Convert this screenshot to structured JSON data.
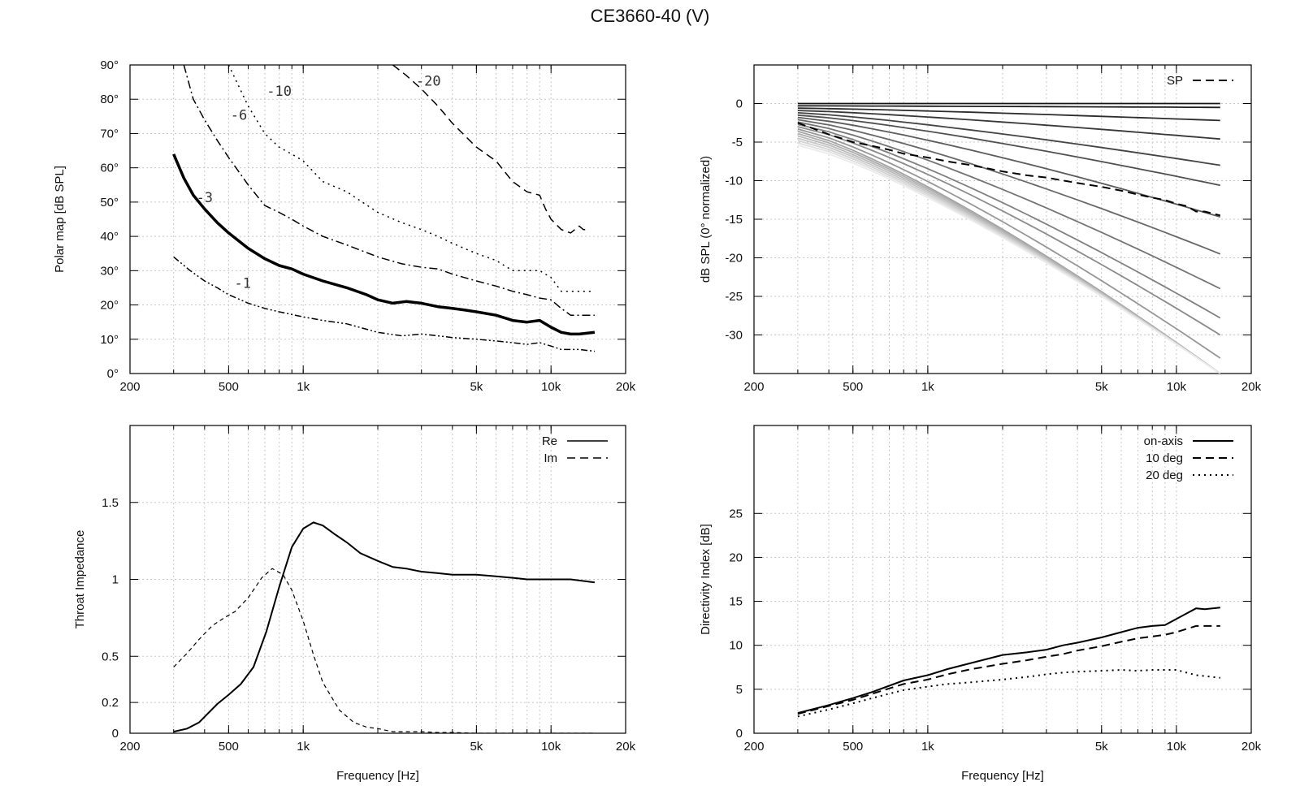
{
  "figure": {
    "title": "CE3660-40 (V)"
  },
  "chart_data": [
    {
      "id": "polar",
      "type": "line",
      "title": "",
      "xlabel": "",
      "ylabel": "Polar map [dB SPL]",
      "xscale": "log",
      "xlim": [
        200,
        20000
      ],
      "ylim": [
        0,
        90
      ],
      "xticks": [
        200,
        500,
        1000,
        5000,
        10000,
        20000
      ],
      "xticklabels": [
        "200",
        "500",
        "1k",
        "5k",
        "10k",
        "20k"
      ],
      "yticks": [
        0,
        10,
        20,
        30,
        40,
        50,
        60,
        70,
        80,
        90
      ],
      "yticklabels": [
        "0°",
        "10°",
        "20°",
        "30°",
        "40°",
        "50°",
        "60°",
        "70°",
        "80°",
        "90°"
      ],
      "grid": true,
      "series": [
        {
          "name": "-1",
          "label": "-1",
          "style": "dashdotdot",
          "width": 1.5,
          "x": [
            300,
            350,
            400,
            450,
            500,
            600,
            700,
            800,
            1000,
            1200,
            1500,
            2000,
            2500,
            3000,
            3500,
            4000,
            5000,
            6000,
            7000,
            8000,
            9000,
            10000,
            11000,
            12000,
            13000,
            15000
          ],
          "y": [
            34,
            30,
            27,
            25,
            23,
            20.5,
            19,
            18,
            16.5,
            15.5,
            14.5,
            12,
            11,
            11.5,
            11,
            10.5,
            10,
            9.5,
            9,
            8.5,
            9,
            8,
            7,
            7,
            7,
            6.5
          ],
          "labelAt": [
            570,
            25
          ]
        },
        {
          "name": "-3",
          "label": "-3",
          "style": "solid",
          "width": 3.5,
          "x": [
            300,
            330,
            360,
            400,
            450,
            500,
            600,
            700,
            800,
            900,
            1000,
            1200,
            1500,
            1800,
            2000,
            2300,
            2600,
            3000,
            3500,
            4000,
            4500,
            5000,
            6000,
            7000,
            8000,
            9000,
            10000,
            11000,
            12000,
            13000,
            15000
          ],
          "y": [
            64,
            57,
            52,
            48,
            44,
            41,
            36.5,
            33.5,
            31.5,
            30.5,
            29,
            27,
            25,
            23,
            21.5,
            20.5,
            21,
            20.5,
            19.5,
            19,
            18.5,
            18,
            17,
            15.5,
            15,
            15.5,
            13.5,
            12,
            11.5,
            11.5,
            12
          ],
          "labelAt": [
            400,
            50
          ]
        },
        {
          "name": "-6",
          "label": "-6",
          "style": "dashdot",
          "width": 1.5,
          "x": [
            330,
            360,
            400,
            450,
            500,
            600,
            700,
            800,
            900,
            1000,
            1200,
            1500,
            2000,
            2500,
            3000,
            3500,
            4000,
            5000,
            6000,
            7000,
            8000,
            9000,
            10000,
            11000,
            12000,
            13000,
            15000
          ],
          "y": [
            90,
            80,
            74,
            68,
            63,
            55,
            49,
            47,
            45,
            43,
            40,
            37.5,
            34,
            32,
            31,
            30.5,
            29,
            27,
            25.5,
            24,
            23,
            22,
            21.5,
            19,
            17,
            17,
            17
          ],
          "labelAt": [
            550,
            74
          ]
        },
        {
          "name": "-10",
          "label": "-10",
          "style": "dotted",
          "width": 1.5,
          "x": [
            500,
            600,
            700,
            800,
            900,
            1000,
            1200,
            1500,
            2000,
            2500,
            3000,
            3500,
            4000,
            5000,
            6000,
            7000,
            8000,
            9000,
            10000,
            11000,
            12000,
            13000,
            15000
          ],
          "y": [
            90,
            78,
            70,
            66,
            64,
            62,
            56,
            53,
            47,
            44,
            42,
            40,
            38,
            35,
            33,
            30,
            30,
            30,
            28,
            24,
            24,
            24,
            24
          ],
          "labelAt": [
            800,
            81
          ]
        },
        {
          "name": "-20",
          "label": "-20",
          "style": "dashed",
          "width": 1.5,
          "x": [
            2300,
            2600,
            3000,
            3500,
            4000,
            5000,
            6000,
            7000,
            8000,
            9000,
            9500,
            10000,
            11000,
            12000,
            13000,
            13500,
            14000
          ],
          "y": [
            90,
            87,
            83,
            78,
            73,
            66,
            62,
            56,
            53,
            52,
            48,
            45,
            42,
            41,
            43,
            42,
            42
          ],
          "labelAt": [
            3200,
            84
          ]
        }
      ]
    },
    {
      "id": "spl",
      "type": "line",
      "title": "",
      "xlabel": "",
      "ylabel": "dB SPL (0° normalized)",
      "xscale": "log",
      "xlim": [
        200,
        20000
      ],
      "ylim": [
        -35,
        5
      ],
      "xticks": [
        200,
        500,
        1000,
        5000,
        10000,
        20000
      ],
      "xticklabels": [
        "200",
        "500",
        "1k",
        "5k",
        "10k",
        "20k"
      ],
      "yticks": [
        0,
        -5,
        -10,
        -15,
        -20,
        -25,
        -30
      ],
      "yticklabels": [
        "0",
        "-5",
        "-10",
        "-15",
        "-20",
        "-25",
        "-30"
      ],
      "grid": true,
      "legend": [
        {
          "label": "SP",
          "style": "dashed"
        }
      ],
      "x": [
        300,
        400,
        500,
        600,
        700,
        800,
        1000,
        1200,
        1500,
        2000,
        2500,
        3000,
        4000,
        5000,
        6000,
        7000,
        8000,
        9000,
        10000,
        11000,
        12000,
        13000,
        15000
      ],
      "curves_at_angle_deg": [
        0,
        5,
        10,
        15,
        20,
        25,
        30,
        35,
        40,
        45,
        50,
        55,
        60,
        65,
        70,
        75,
        80,
        85,
        90
      ],
      "curve_final_levels_db": [
        0,
        -0.5,
        -2.2,
        -4.6,
        -8,
        -10.6,
        -14.7,
        -19.5,
        -24,
        -27.8,
        -30,
        -33,
        -35,
        -35,
        -35,
        -35,
        -35,
        -35,
        -35
      ],
      "sound_power": {
        "name": "SP",
        "y": [
          -2.5,
          -4,
          -5,
          -5.5,
          -6,
          -6.5,
          -7,
          -7.5,
          -8,
          -8.8,
          -9.3,
          -9.6,
          -10.3,
          -10.8,
          -11.3,
          -11.8,
          -12.2,
          -12.5,
          -13,
          -13.3,
          -14,
          -14,
          -14.5
        ]
      }
    },
    {
      "id": "impedance",
      "type": "line",
      "title": "",
      "xlabel": "Frequency [Hz]",
      "ylabel": "Throat Impedance",
      "xscale": "log",
      "xlim": [
        200,
        20000
      ],
      "ylim": [
        0,
        2
      ],
      "xticks": [
        200,
        500,
        1000,
        5000,
        10000,
        20000
      ],
      "xticklabels": [
        "200",
        "500",
        "1k",
        "5k",
        "10k",
        "20k"
      ],
      "yticks": [
        0,
        0.2,
        0.5,
        1,
        1.5
      ],
      "yticklabels": [
        "0",
        "0.2",
        "0.5",
        "1",
        "1.5"
      ],
      "grid": true,
      "series": [
        {
          "name": "Re",
          "style": "solid",
          "x": [
            300,
            340,
            380,
            450,
            500,
            560,
            630,
            710,
            800,
            900,
            1000,
            1100,
            1200,
            1350,
            1500,
            1700,
            2000,
            2300,
            2600,
            3000,
            3500,
            4000,
            5000,
            6000,
            7000,
            8000,
            9000,
            10000,
            12000,
            15000
          ],
          "y": [
            0.01,
            0.03,
            0.07,
            0.19,
            0.25,
            0.32,
            0.43,
            0.66,
            0.95,
            1.21,
            1.33,
            1.37,
            1.35,
            1.29,
            1.24,
            1.17,
            1.12,
            1.08,
            1.07,
            1.05,
            1.04,
            1.03,
            1.03,
            1.02,
            1.01,
            1,
            1,
            1,
            1,
            0.98
          ]
        },
        {
          "name": "Im",
          "style": "dashed",
          "x": [
            300,
            340,
            380,
            430,
            480,
            530,
            600,
            680,
            750,
            830,
            900,
            1000,
            1100,
            1200,
            1400,
            1600,
            1800,
            2000,
            2300,
            2600,
            3000,
            3500,
            4000,
            5000,
            6000,
            8000,
            10000,
            15000
          ],
          "y": [
            0.43,
            0.52,
            0.61,
            0.7,
            0.75,
            0.79,
            0.88,
            1.01,
            1.07,
            1.03,
            0.93,
            0.73,
            0.51,
            0.33,
            0.15,
            0.07,
            0.04,
            0.03,
            0.01,
            0.01,
            0.01,
            0.005,
            0.005,
            0,
            0,
            0,
            0,
            0
          ]
        }
      ]
    },
    {
      "id": "di",
      "type": "line",
      "title": "",
      "xlabel": "Frequency [Hz]",
      "ylabel": "Directivity Index [dB]",
      "xscale": "log",
      "xlim": [
        200,
        20000
      ],
      "ylim": [
        0,
        35
      ],
      "xticks": [
        200,
        500,
        1000,
        5000,
        10000,
        20000
      ],
      "xticklabels": [
        "200",
        "500",
        "1k",
        "5k",
        "10k",
        "20k"
      ],
      "yticks": [
        0,
        5,
        10,
        15,
        20,
        25
      ],
      "yticklabels": [
        "0",
        "5",
        "10",
        "15",
        "20",
        "25"
      ],
      "grid": true,
      "series": [
        {
          "name": "on-axis",
          "style": "solid",
          "x": [
            300,
            400,
            500,
            600,
            700,
            800,
            1000,
            1200,
            1500,
            2000,
            2500,
            3000,
            3500,
            4000,
            5000,
            6000,
            7000,
            8000,
            9000,
            10000,
            12000,
            13000,
            15000
          ],
          "y": [
            2.3,
            3.2,
            4,
            4.7,
            5.4,
            6,
            6.6,
            7.3,
            8,
            8.9,
            9.2,
            9.5,
            10,
            10.3,
            10.9,
            11.5,
            12,
            12.2,
            12.3,
            13,
            14.2,
            14.1,
            14.3
          ]
        },
        {
          "name": "10 deg",
          "style": "dashed",
          "x": [
            300,
            400,
            500,
            600,
            700,
            800,
            1000,
            1200,
            1500,
            2000,
            2500,
            3000,
            3500,
            4000,
            5000,
            6000,
            7000,
            8000,
            9000,
            10000,
            12000,
            13000,
            15000
          ],
          "y": [
            2.2,
            3.1,
            3.8,
            4.5,
            5.1,
            5.6,
            6.1,
            6.7,
            7.3,
            7.9,
            8.3,
            8.7,
            9,
            9.4,
            9.9,
            10.4,
            10.8,
            11,
            11.2,
            11.5,
            12.2,
            12.2,
            12.2
          ]
        },
        {
          "name": "20 deg",
          "style": "dotted",
          "x": [
            300,
            400,
            500,
            600,
            700,
            800,
            1000,
            1200,
            1500,
            2000,
            2500,
            3000,
            3500,
            4000,
            5000,
            6000,
            7000,
            8000,
            9000,
            10000,
            12000,
            13000,
            15000
          ],
          "y": [
            1.9,
            2.7,
            3.4,
            4,
            4.5,
            4.9,
            5.3,
            5.6,
            5.8,
            6.1,
            6.4,
            6.7,
            6.9,
            7,
            7.1,
            7.2,
            7.1,
            7.2,
            7.2,
            7.2,
            6.6,
            6.5,
            6.3
          ]
        }
      ]
    }
  ]
}
